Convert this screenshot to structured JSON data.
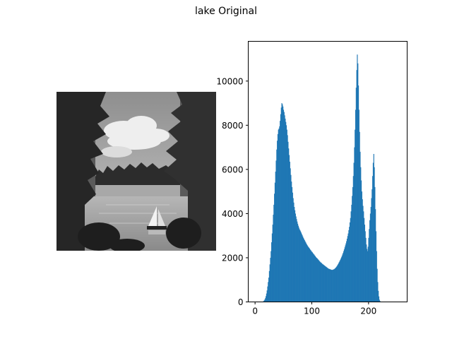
{
  "figure": {
    "title": "lake Original"
  },
  "image_panel": {
    "content": "grayscale photograph of a lake with pine trees, clouds and a sailboat",
    "icon": "photo-lake-sailboat"
  },
  "chart_data": {
    "type": "bar",
    "title": "",
    "xlabel": "",
    "ylabel": "",
    "xlim": [
      -12,
      268
    ],
    "ylim": [
      0,
      11800
    ],
    "xticks": [
      0,
      100,
      200
    ],
    "xtick_labels": [
      "0",
      "100",
      "200"
    ],
    "yticks": [
      0,
      2000,
      4000,
      6000,
      8000,
      10000
    ],
    "ytick_labels": [
      "0",
      "2000",
      "4000",
      "6000",
      "8000",
      "10000"
    ],
    "grid": false,
    "legend": "none",
    "bar_color": "#1f77b4",
    "bins": 256,
    "values": [
      0,
      0,
      0,
      0,
      0,
      0,
      0,
      0,
      0,
      0,
      0,
      0,
      0,
      0,
      20,
      40,
      70,
      110,
      170,
      260,
      380,
      520,
      700,
      900,
      1100,
      1400,
      1700,
      2000,
      2300,
      2700,
      3100,
      3500,
      3950,
      4400,
      4900,
      5400,
      5900,
      6400,
      6900,
      7300,
      7600,
      7800,
      7850,
      7950,
      8200,
      8500,
      8800,
      9000,
      8950,
      8850,
      8700,
      8600,
      8450,
      8300,
      8150,
      8000,
      7800,
      7550,
      7250,
      6950,
      6650,
      6350,
      6050,
      5750,
      5450,
      5200,
      4950,
      4700,
      4500,
      4300,
      4150,
      4000,
      3870,
      3750,
      3640,
      3540,
      3450,
      3370,
      3300,
      3250,
      3200,
      3140,
      3080,
      3020,
      2960,
      2900,
      2850,
      2800,
      2750,
      2700,
      2650,
      2600,
      2560,
      2520,
      2480,
      2450,
      2410,
      2370,
      2340,
      2300,
      2270,
      2240,
      2200,
      2170,
      2140,
      2100,
      2070,
      2030,
      2000,
      1980,
      1950,
      1920,
      1890,
      1860,
      1830,
      1800,
      1780,
      1760,
      1730,
      1710,
      1690,
      1670,
      1650,
      1630,
      1610,
      1590,
      1570,
      1550,
      1530,
      1510,
      1500,
      1490,
      1480,
      1470,
      1460,
      1450,
      1450,
      1460,
      1470,
      1480,
      1500,
      1520,
      1550,
      1580,
      1620,
      1660,
      1700,
      1750,
      1800,
      1850,
      1900,
      1960,
      2020,
      2080,
      2150,
      2220,
      2300,
      2380,
      2470,
      2560,
      2650,
      2750,
      2860,
      2980,
      3100,
      3250,
      3400,
      3600,
      3800,
      4100,
      4400,
      4800,
      5200,
      5700,
      6300,
      7000,
      7800,
      8700,
      9700,
      10500,
      11200,
      10800,
      9800,
      8700,
      7700,
      6800,
      6100,
      5500,
      5000,
      4650,
      4350,
      4100,
      3800,
      3500,
      3200,
      2900,
      2600,
      2400,
      2300,
      2500,
      2900,
      3300,
      3700,
      4000,
      4300,
      4700,
      5100,
      5700,
      6300,
      6700,
      6100,
      5200,
      4200,
      3200,
      2300,
      1500,
      900,
      500,
      250,
      100,
      40,
      10,
      0,
      0,
      0,
      0,
      0,
      0,
      0,
      0,
      0,
      0,
      0,
      0,
      0,
      0,
      0,
      0,
      0,
      0,
      0,
      0,
      0,
      0,
      0,
      0,
      0,
      0,
      0,
      0,
      0,
      0,
      0,
      0,
      0,
      0,
      0
    ]
  }
}
